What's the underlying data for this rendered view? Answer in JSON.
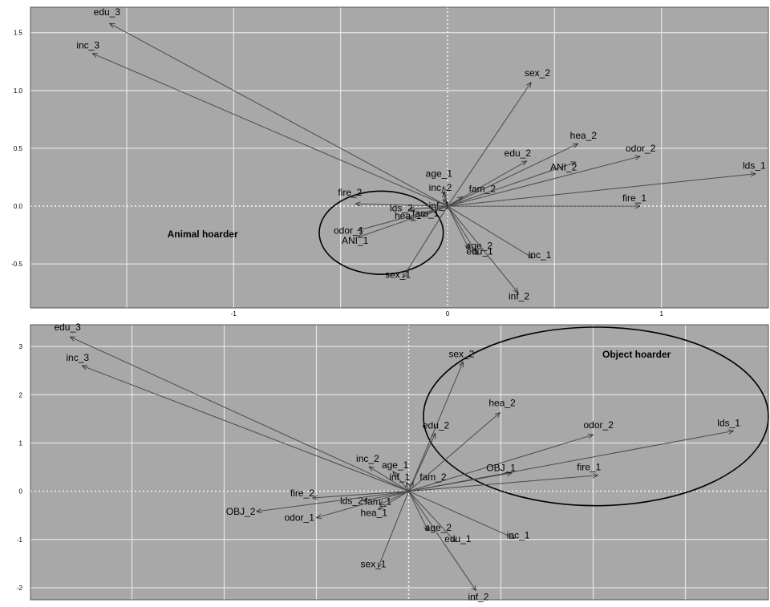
{
  "chart_data": [
    {
      "type": "scatter",
      "title": "",
      "xlabel": "",
      "ylabel": "",
      "xlim": [
        -1.95,
        1.5
      ],
      "ylim": [
        -0.88,
        1.72
      ],
      "grid": true,
      "x_ticks": [
        -1,
        0,
        1
      ],
      "y_ticks": [
        -0.5,
        0.0,
        0.5,
        1.0,
        1.5
      ],
      "x_tick_labels": [
        "-1",
        "0",
        "1"
      ],
      "y_tick_labels": [
        "-0.5",
        "0.0",
        "0.5",
        "1.0",
        "1.5"
      ],
      "origin": [
        0,
        0
      ],
      "points": [
        {
          "label": "edu_3",
          "x": -1.58,
          "y": 1.58
        },
        {
          "label": "inc_3",
          "x": -1.66,
          "y": 1.32
        },
        {
          "label": "sex_2",
          "x": 0.39,
          "y": 1.07
        },
        {
          "label": "hea_2",
          "x": 0.61,
          "y": 0.54
        },
        {
          "label": "odor_2",
          "x": 0.9,
          "y": 0.43
        },
        {
          "label": "lds_1",
          "x": 1.44,
          "y": 0.28
        },
        {
          "label": "edu_2",
          "x": 0.37,
          "y": 0.39
        },
        {
          "label": "ANI_2",
          "x": 0.6,
          "y": 0.38
        },
        {
          "label": "age_1",
          "x": -0.02,
          "y": 0.17
        },
        {
          "label": "inc_2",
          "x": -0.02,
          "y": 0.12
        },
        {
          "label": "fam_2",
          "x": 0.07,
          "y": 0.08
        },
        {
          "label": "inf_1",
          "x": -0.02,
          "y": 0.06
        },
        {
          "label": "fire_1",
          "x": 0.9,
          "y": 0.0
        },
        {
          "label": "fire_2",
          "x": -0.43,
          "y": 0.02
        },
        {
          "label": "lds_2",
          "x": -0.18,
          "y": -0.03
        },
        {
          "label": "hea_1",
          "x": -0.18,
          "y": -0.11
        },
        {
          "label": "fam_1",
          "x": -0.12,
          "y": -0.09
        },
        {
          "label": "odor_1",
          "x": -0.42,
          "y": -0.21
        },
        {
          "label": "ANI_1",
          "x": -0.42,
          "y": -0.27
        },
        {
          "label": "age_2",
          "x": 0.1,
          "y": -0.37
        },
        {
          "label": "edu_1",
          "x": 0.14,
          "y": -0.42
        },
        {
          "label": "inc_1",
          "x": 0.4,
          "y": -0.45
        },
        {
          "label": "sex_1",
          "x": -0.21,
          "y": -0.62
        },
        {
          "label": "inf_2",
          "x": 0.33,
          "y": -0.75
        }
      ],
      "annotations": [
        {
          "text": "Animal hoarder",
          "x": -0.98,
          "y": -0.27
        }
      ]
    },
    {
      "type": "scatter",
      "title": "",
      "xlabel": "",
      "ylabel": "",
      "xlim": [
        -4.1,
        3.9
      ],
      "ylim": [
        -2.25,
        3.45
      ],
      "grid": true,
      "x_ticks": [],
      "y_ticks": [
        -2,
        -1,
        0,
        1,
        2,
        3
      ],
      "x_tick_labels": [],
      "y_tick_labels": [
        "-2",
        "-1",
        "0",
        "1",
        "2",
        "3"
      ],
      "origin": [
        0,
        0
      ],
      "points": [
        {
          "label": "edu_3",
          "x": -3.67,
          "y": 3.2
        },
        {
          "label": "inc_3",
          "x": -3.54,
          "y": 2.6
        },
        {
          "label": "sex_2",
          "x": 0.59,
          "y": 2.68
        },
        {
          "label": "hea_2",
          "x": 0.99,
          "y": 1.63
        },
        {
          "label": "edu_2",
          "x": 0.29,
          "y": 1.2
        },
        {
          "label": "odor_2",
          "x": 2.0,
          "y": 1.17
        },
        {
          "label": "lds_1",
          "x": 3.52,
          "y": 1.25
        },
        {
          "label": "fire_1",
          "x": 2.05,
          "y": 0.33
        },
        {
          "label": "OBJ_1",
          "x": 1.12,
          "y": 0.38
        },
        {
          "label": "inc_2",
          "x": -0.43,
          "y": 0.51
        },
        {
          "label": "age_1",
          "x": -0.17,
          "y": 0.41
        },
        {
          "label": "inf_1",
          "x": -0.02,
          "y": 0.19
        },
        {
          "label": "fam_2",
          "x": 0.05,
          "y": 0.19
        },
        {
          "label": "fire_2",
          "x": -1.04,
          "y": -0.14
        },
        {
          "label": "lds_2",
          "x": -0.5,
          "y": -0.2
        },
        {
          "label": "fam_1",
          "x": -0.32,
          "y": -0.28
        },
        {
          "label": "hea_1",
          "x": -0.33,
          "y": -0.38
        },
        {
          "label": "OBJ_2",
          "x": -1.65,
          "y": -0.42
        },
        {
          "label": "odor_1",
          "x": -1.0,
          "y": -0.55
        },
        {
          "label": "age_2",
          "x": 0.21,
          "y": -0.82
        },
        {
          "label": "edu_1",
          "x": 0.51,
          "y": -1.05
        },
        {
          "label": "inc_1",
          "x": 1.15,
          "y": -0.98
        },
        {
          "label": "sex_1",
          "x": -0.33,
          "y": -1.58
        },
        {
          "label": "inf_2",
          "x": 0.73,
          "y": -2.06
        }
      ],
      "annotations": [
        {
          "text": "Object hoarder",
          "x": 2.1,
          "y": 2.77
        }
      ]
    }
  ]
}
